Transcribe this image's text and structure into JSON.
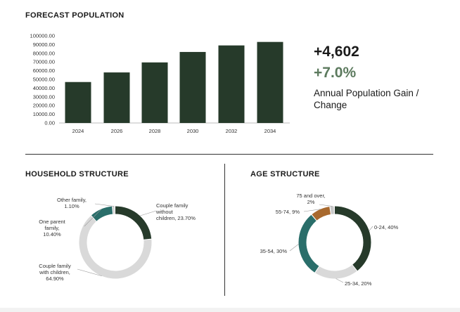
{
  "titles": {
    "forecast": "FORECAST  POPULATION",
    "household": "HOUSEHOLD  STRUCTURE",
    "age": "AGE STRUCTURE"
  },
  "stats": {
    "gain": "+4,602",
    "change": "+7.0%",
    "description": "Annual Population Gain / Change"
  },
  "chart_data": [
    {
      "type": "bar",
      "categories": [
        "2024",
        "2026",
        "2028",
        "2030",
        "2032",
        "2034"
      ],
      "values": [
        47000,
        58000,
        69500,
        81500,
        89000,
        93000
      ],
      "y_ticks": [
        "0.00",
        "10000.00",
        "20000.00",
        "30000.00",
        "40000.00",
        "50000.00",
        "60000.00",
        "70000.00",
        "80000.00",
        "90000.00",
        "100000.00"
      ],
      "ylim": [
        0,
        100000
      ],
      "color": "#263a2a",
      "grid": false
    },
    {
      "type": "pie",
      "donut": true,
      "slices": [
        {
          "label": "Couple family without children, 23.70%",
          "value": 23.7,
          "color": "#263a2a"
        },
        {
          "label": "Couple family with children, 64.90%",
          "value": 64.9,
          "color": "#d9d9d9"
        },
        {
          "label": "One parent family, 10.40%",
          "value": 10.4,
          "color": "#2a6e6a"
        },
        {
          "label": "Other family, 1.10%",
          "value": 1.1,
          "color": "#c8c8c8"
        }
      ]
    },
    {
      "type": "pie",
      "donut": true,
      "slices": [
        {
          "label": "0-24, 40%",
          "value": 40,
          "color": "#263a2a"
        },
        {
          "label": "25-34, 20%",
          "value": 20,
          "color": "#d9d9d9"
        },
        {
          "label": "35-54, 30%",
          "value": 30,
          "color": "#2a6e6a"
        },
        {
          "label": "55-74, 9%",
          "value": 9,
          "color": "#a8692e"
        },
        {
          "label": "75 and over, 2%",
          "value": 2,
          "color": "#c8c8c8"
        }
      ]
    }
  ]
}
